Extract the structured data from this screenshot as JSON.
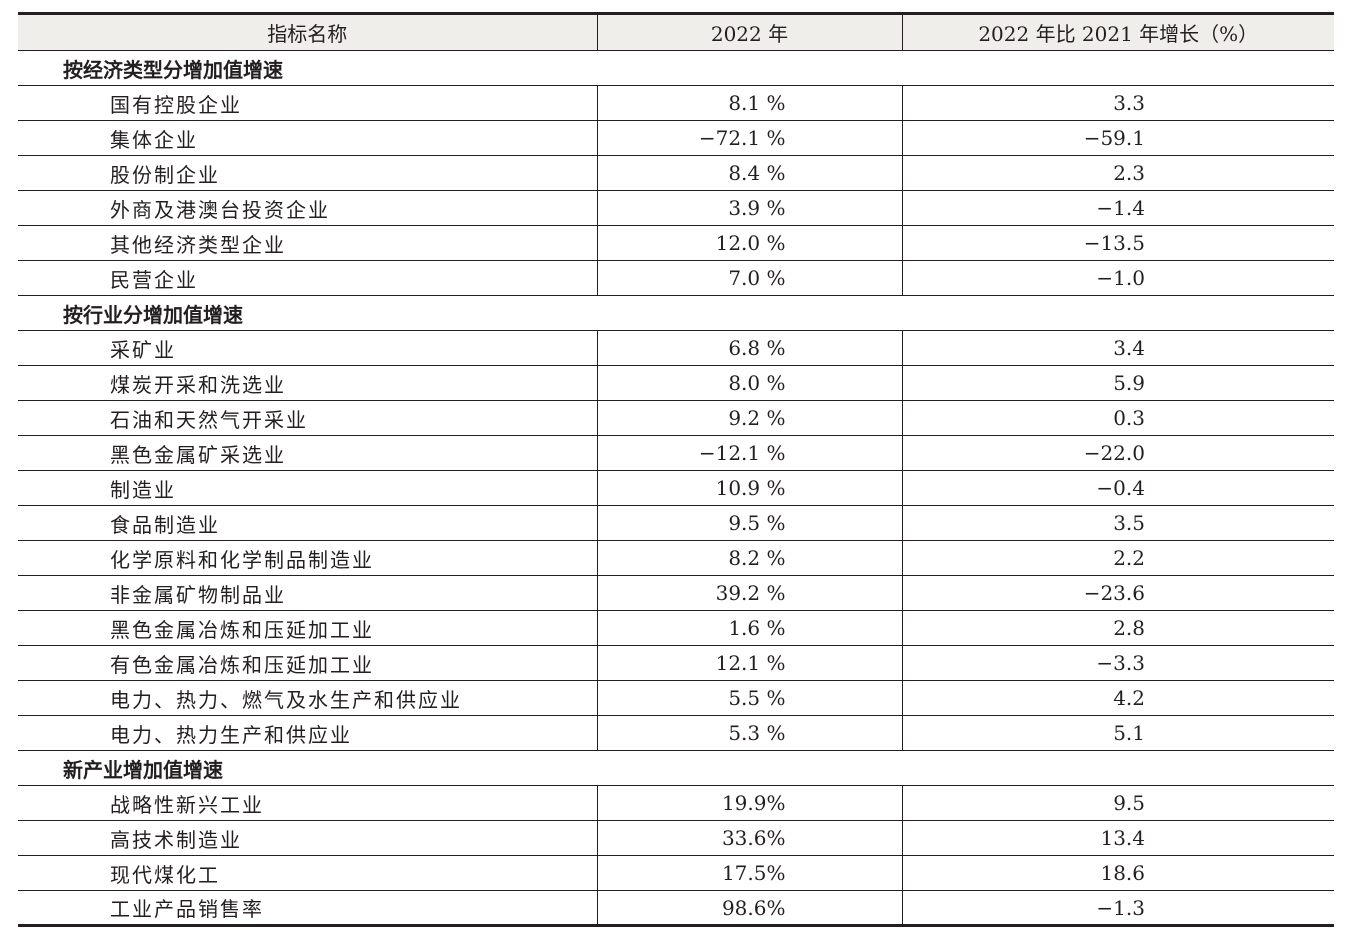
{
  "header": {
    "col_name": "指标名称",
    "col_2022": "2022 年",
    "col_growth": "2022 年比 2021 年增长（%）"
  },
  "sections": [
    {
      "title": "按经济类型分增加值增速",
      "rows": [
        {
          "name": "国有控股企业",
          "v2022": "8.1 %",
          "growth": "3.3"
        },
        {
          "name": "集体企业",
          "v2022": "−72.1 %",
          "growth": "−59.1"
        },
        {
          "name": "股份制企业",
          "v2022": "8.4 %",
          "growth": "2.3"
        },
        {
          "name": "外商及港澳台投资企业",
          "v2022": "3.9 %",
          "growth": "−1.4"
        },
        {
          "name": "其他经济类型企业",
          "v2022": "12.0 %",
          "growth": "−13.5"
        },
        {
          "name": "民营企业",
          "v2022": "7.0 %",
          "growth": "−1.0"
        }
      ]
    },
    {
      "title": "按行业分增加值增速",
      "rows": [
        {
          "name": "采矿业",
          "v2022": "6.8 %",
          "growth": "3.4"
        },
        {
          "name": "煤炭开采和洗选业",
          "v2022": "8.0 %",
          "growth": "5.9"
        },
        {
          "name": "石油和天然气开采业",
          "v2022": "9.2 %",
          "growth": "0.3"
        },
        {
          "name": "黑色金属矿采选业",
          "v2022": "−12.1 %",
          "growth": "−22.0"
        },
        {
          "name": "制造业",
          "v2022": "10.9 %",
          "growth": "−0.4"
        },
        {
          "name": "食品制造业",
          "v2022": "9.5 %",
          "growth": "3.5"
        },
        {
          "name": "化学原料和化学制品制造业",
          "v2022": "8.2 %",
          "growth": "2.2"
        },
        {
          "name": "非金属矿物制品业",
          "v2022": "39.2 %",
          "growth": "−23.6"
        },
        {
          "name": "黑色金属冶炼和压延加工业",
          "v2022": "1.6 %",
          "growth": "2.8"
        },
        {
          "name": "有色金属冶炼和压延加工业",
          "v2022": "12.1 %",
          "growth": "−3.3"
        },
        {
          "name": "电力、热力、燃气及水生产和供应业",
          "v2022": "5.5 %",
          "growth": "4.2"
        },
        {
          "name": "电力、热力生产和供应业",
          "v2022": "5.3 %",
          "growth": "5.1"
        }
      ]
    },
    {
      "title": "新产业增加值增速",
      "rows": [
        {
          "name": "战略性新兴工业",
          "v2022": "19.9%",
          "growth": "9.5"
        },
        {
          "name": "高技术制造业",
          "v2022": "33.6%",
          "growth": "13.4"
        },
        {
          "name": "现代煤化工",
          "v2022": "17.5%",
          "growth": "18.6"
        },
        {
          "name": "工业产品销售率",
          "v2022": "98.6%",
          "growth": "−1.3"
        }
      ]
    }
  ]
}
